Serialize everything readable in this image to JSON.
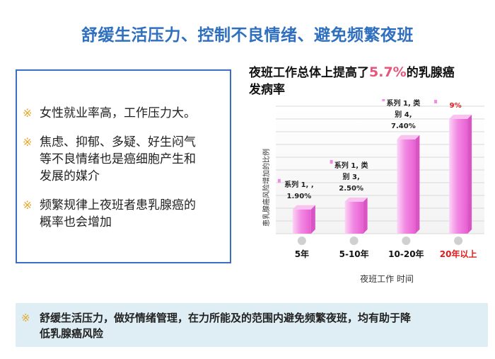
{
  "slide": {
    "title": "舒缓生活压力、控制不良情绪、避免频繁夜班"
  },
  "left_panel": {
    "bullet_mark": "※",
    "bullets": [
      {
        "line1": "女性就业率高，工作压力大。",
        "line2": "",
        "line3": ""
      },
      {
        "line1": "焦虑、抑郁、多疑、好生闷气",
        "line2": "等不良情绪也是癌细胞产生和",
        "line3": "发展的媒介"
      },
      {
        "line1": "频繁规律上夜班者患乳腺癌的",
        "line2": "概率也会增加",
        "line3": ""
      }
    ]
  },
  "chart_header": {
    "prefix": "夜班工作总体上提高了",
    "highlight": "5.7%",
    "suffix": "的乳腺癌",
    "line2": "发病率",
    "highlight_color": "#e8557a"
  },
  "chart_data": {
    "type": "bar",
    "categories": [
      "5年",
      "5-10年",
      "10-20年",
      "20年以上"
    ],
    "category_colors": [
      "#111111",
      "#111111",
      "#111111",
      "#e01b1b"
    ],
    "values": [
      1.9,
      2.5,
      7.4,
      9
    ],
    "data_labels": [
      [
        "系列 1, ,",
        "1.90%"
      ],
      [
        "系列 1, 类",
        "别 3,",
        "2.50%"
      ],
      [
        "系列 1, 类",
        "别 4,",
        "7.40%"
      ],
      [
        "9%"
      ]
    ],
    "data_label_colors": [
      "#222222",
      "#222222",
      "#222222",
      "#e01b1b"
    ],
    "ylabel": "患乳腺癌风险增加的比例",
    "xlabel": "夜班工作 时间",
    "ylim": [
      0,
      10
    ],
    "grid": true,
    "bar_color": "#f28ae3"
  },
  "bottom_panel": {
    "mark": "※",
    "line1": "舒缓生活压力，做好情绪管理，在力所能及的范围内避免频繁夜班，均有助于降",
    "line2": "低乳腺癌风险"
  }
}
